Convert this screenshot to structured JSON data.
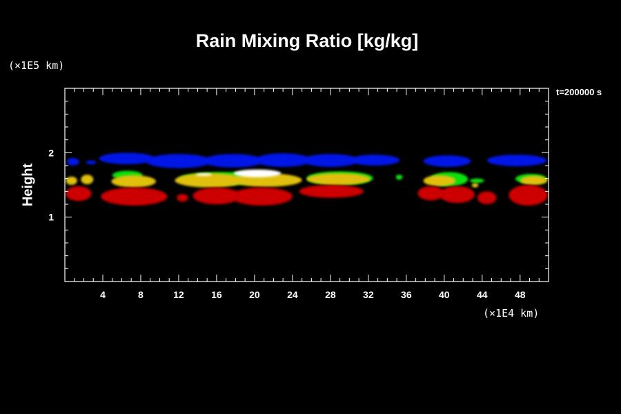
{
  "chart_data": {
    "type": "heatmap",
    "title": "Rain Mixing Ratio [kg/kg]",
    "ylabel": "Height",
    "xlabel": "",
    "x_unit": "(×1E4 km)",
    "y_unit": "(×1E5 km)",
    "annotation": "t=200000 s",
    "xlim": [
      0,
      51
    ],
    "ylim": [
      0,
      3
    ],
    "x_ticks": [
      4,
      8,
      12,
      16,
      20,
      24,
      28,
      32,
      36,
      40,
      44,
      48
    ],
    "y_ticks": [
      1,
      2
    ],
    "x_minor_step": 1,
    "y_minor_step": 0.2,
    "grid": false,
    "colors": {
      "blue": "#0018e6",
      "green": "#10e010",
      "yellow": "#e0c010",
      "white": "#ffffff",
      "red": "#cc0000"
    },
    "regions": [
      {
        "name": "blue layer",
        "color": "blue",
        "blobs": [
          {
            "x": [
              0.2,
              1.5
            ],
            "y": [
              1.8,
              1.92
            ]
          },
          {
            "x": [
              2.2,
              3.3
            ],
            "y": [
              1.82,
              1.88
            ]
          },
          {
            "x": [
              3.6,
              9.5
            ],
            "y": [
              1.82,
              2.0
            ]
          },
          {
            "x": [
              8.5,
              15.5
            ],
            "y": [
              1.76,
              1.98
            ]
          },
          {
            "x": [
              14.5,
              21.0
            ],
            "y": [
              1.77,
              1.98
            ]
          },
          {
            "x": [
              20.0,
              26.0
            ],
            "y": [
              1.78,
              1.99
            ]
          },
          {
            "x": [
              25.0,
              31.0
            ],
            "y": [
              1.78,
              1.98
            ]
          },
          {
            "x": [
              30.0,
              35.3
            ],
            "y": [
              1.8,
              1.97
            ]
          },
          {
            "x": [
              37.8,
              42.8
            ],
            "y": [
              1.78,
              1.96
            ]
          },
          {
            "x": [
              44.5,
              50.8
            ],
            "y": [
              1.79,
              1.97
            ]
          }
        ]
      },
      {
        "name": "green band",
        "color": "green",
        "blobs": [
          {
            "x": [
              5.0,
              8.2
            ],
            "y": [
              1.58,
              1.72
            ]
          },
          {
            "x": [
              12.0,
              21.5
            ],
            "y": [
              1.5,
              1.7
            ]
          },
          {
            "x": [
              25.5,
              32.5
            ],
            "y": [
              1.5,
              1.71
            ]
          },
          {
            "x": [
              34.9,
              35.6
            ],
            "y": [
              1.58,
              1.66
            ]
          },
          {
            "x": [
              38.5,
              42.5
            ],
            "y": [
              1.48,
              1.7
            ]
          },
          {
            "x": [
              42.7,
              44.2
            ],
            "y": [
              1.53,
              1.6
            ]
          },
          {
            "x": [
              47.5,
              50.8
            ],
            "y": [
              1.52,
              1.67
            ]
          }
        ]
      },
      {
        "name": "yellow band",
        "color": "yellow",
        "blobs": [
          {
            "x": [
              0.1,
              1.3
            ],
            "y": [
              1.5,
              1.63
            ]
          },
          {
            "x": [
              1.7,
              3.0
            ],
            "y": [
              1.51,
              1.66
            ]
          },
          {
            "x": [
              4.9,
              9.6
            ],
            "y": [
              1.46,
              1.65
            ]
          },
          {
            "x": [
              11.6,
              19.0
            ],
            "y": [
              1.46,
              1.68
            ]
          },
          {
            "x": [
              17.5,
              25.0
            ],
            "y": [
              1.47,
              1.68
            ]
          },
          {
            "x": [
              25.5,
              32.2
            ],
            "y": [
              1.5,
              1.68
            ]
          },
          {
            "x": [
              37.8,
              41.2
            ],
            "y": [
              1.48,
              1.65
            ]
          },
          {
            "x": [
              42.9,
              43.6
            ],
            "y": [
              1.46,
              1.53
            ]
          },
          {
            "x": [
              48.0,
              50.9
            ],
            "y": [
              1.5,
              1.64
            ]
          }
        ]
      },
      {
        "name": "white core",
        "color": "white",
        "blobs": [
          {
            "x": [
              13.8,
              15.5
            ],
            "y": [
              1.64,
              1.68
            ]
          },
          {
            "x": [
              17.8,
              22.8
            ],
            "y": [
              1.62,
              1.74
            ]
          }
        ]
      },
      {
        "name": "red base",
        "color": "red",
        "blobs": [
          {
            "x": [
              0.1,
              2.8
            ],
            "y": [
              1.25,
              1.48
            ]
          },
          {
            "x": [
              3.8,
              10.8
            ],
            "y": [
              1.18,
              1.46
            ]
          },
          {
            "x": [
              11.8,
              13.0
            ],
            "y": [
              1.24,
              1.36
            ]
          },
          {
            "x": [
              13.5,
              18.5
            ],
            "y": [
              1.2,
              1.46
            ]
          },
          {
            "x": [
              17.5,
              24.0
            ],
            "y": [
              1.18,
              1.46
            ]
          },
          {
            "x": [
              24.7,
              31.5
            ],
            "y": [
              1.3,
              1.5
            ]
          },
          {
            "x": [
              37.2,
              40.0
            ],
            "y": [
              1.26,
              1.48
            ]
          },
          {
            "x": [
              39.5,
              43.2
            ],
            "y": [
              1.22,
              1.48
            ]
          },
          {
            "x": [
              43.5,
              45.5
            ],
            "y": [
              1.2,
              1.4
            ]
          },
          {
            "x": [
              46.8,
              50.9
            ],
            "y": [
              1.18,
              1.5
            ]
          }
        ]
      }
    ]
  }
}
